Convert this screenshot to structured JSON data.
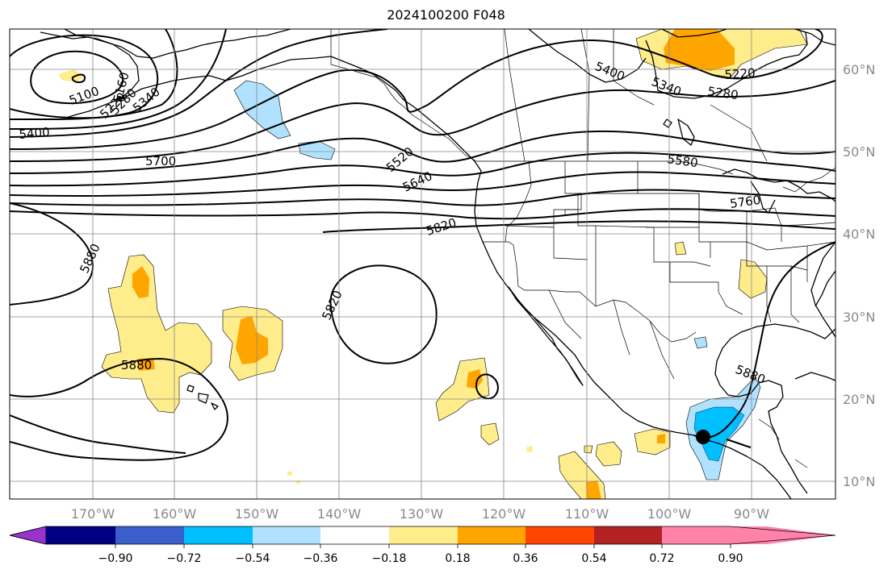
{
  "title": "2024100200 F048",
  "map": {
    "lon_range": [
      -180,
      -80
    ],
    "lat_range": [
      8,
      65
    ],
    "lon_ticks": [
      "170°W",
      "160°W",
      "150°W",
      "140°W",
      "130°W",
      "120°W",
      "110°W",
      "100°W",
      "90°W"
    ],
    "lat_ticks": [
      "60°N",
      "50°N",
      "40°N",
      "30°N",
      "20°N",
      "10°N"
    ],
    "grid": true,
    "contour_labels": [
      "5100",
      "5160",
      "5220",
      "5280",
      "5340",
      "5400",
      "5700",
      "5880",
      "5820",
      "5520",
      "5640",
      "5400",
      "5340",
      "5280",
      "5220",
      "5580",
      "5760",
      "5820",
      "5880",
      "5880"
    ],
    "marker": "storm-center"
  },
  "colorbar": {
    "ticks": [
      "−0.90",
      "−0.72",
      "−0.54",
      "−0.36",
      "−0.18",
      "0.18",
      "0.36",
      "0.54",
      "0.72",
      "0.90"
    ],
    "colors": [
      "#9933cc",
      "#000080",
      "#3a5fcd",
      "#00bfff",
      "#b0e2ff",
      "#ffffff",
      "#ffec8b",
      "#ffa500",
      "#ff4500",
      "#b22222",
      "#ff82ab"
    ]
  }
}
